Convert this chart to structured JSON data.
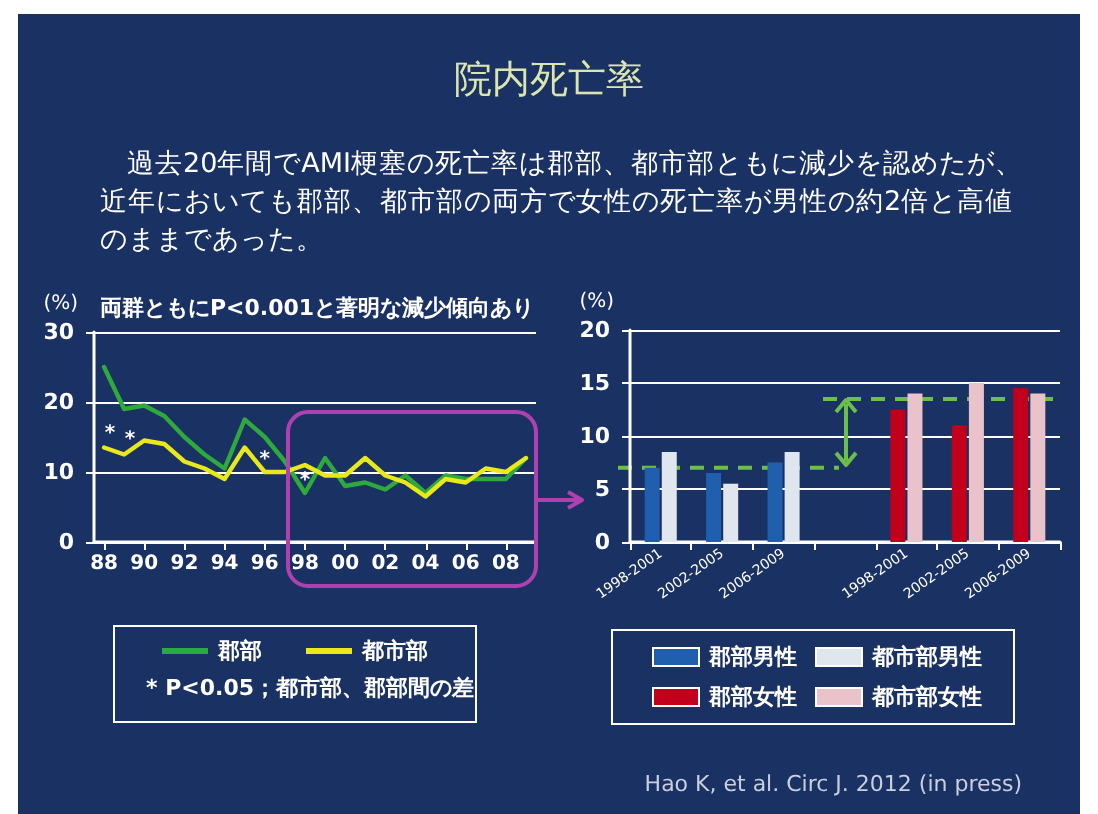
{
  "chart_data": [
    {
      "type": "line",
      "title": "院内死亡率",
      "subtitle": "過去20年間でAMI梗塞の死亡率は郡部、都市部ともに減少を認めたが、近年においても郡部、都市部の両方で女性の死亡率が男性の約2倍と高値のままであった。",
      "ylabel": "(%)",
      "x": [
        1988,
        1989,
        1990,
        1991,
        1992,
        1993,
        1994,
        1995,
        1996,
        1997,
        1998,
        1999,
        2000,
        2001,
        2002,
        2003,
        2004,
        2005,
        2006,
        2007,
        2008,
        2009
      ],
      "series": [
        {
          "name": "郡部",
          "color": "#2eaa3c",
          "values": [
            25,
            19,
            19.5,
            18,
            15,
            12.5,
            10.5,
            17.5,
            15,
            11.5,
            7,
            12,
            8,
            8.5,
            7.5,
            9.5,
            7,
            9.5,
            9,
            9,
            9,
            12
          ]
        },
        {
          "name": "都市部",
          "color": "#e8e81a",
          "values": [
            13.5,
            12.5,
            14.5,
            14,
            11.5,
            10.5,
            9,
            13.5,
            10,
            10,
            11,
            9.5,
            9.5,
            12,
            9.5,
            8.5,
            6.5,
            9,
            8.5,
            10.5,
            10,
            12
          ]
        }
      ],
      "xlim": [
        1987.5,
        2009.5
      ],
      "xticks": [
        {
          "value": 1988,
          "label": "88"
        },
        {
          "value": 1990,
          "label": "90"
        },
        {
          "value": 1992,
          "label": "92"
        },
        {
          "value": 1994,
          "label": "94"
        },
        {
          "value": 1996,
          "label": "96"
        },
        {
          "value": 1998,
          "label": "98"
        },
        {
          "value": 2000,
          "label": "00"
        },
        {
          "value": 2002,
          "label": "02"
        },
        {
          "value": 2004,
          "label": "04"
        },
        {
          "value": 2006,
          "label": "06"
        },
        {
          "value": 2008,
          "label": "08"
        }
      ],
      "ylim": [
        0,
        30
      ],
      "yticks": [
        0,
        10,
        20,
        30
      ],
      "grid": "y",
      "legend": "bottom",
      "marker": "none",
      "line_style": "solid",
      "annotations": [
        "両群ともにP<0.001と著明な減少傾向あり",
        "*",
        "*",
        {
          "text": "*",
          "x": 1996,
          "y": 12.5
        },
        {
          "text": "*",
          "x": 1998,
          "y": 9.5
        },
        "* P<0.05；都市部、郡部間の差"
      ]
    },
    {
      "type": "bar",
      "ylabel": "(%)",
      "categories": [
        "1998-2001",
        "2002-2005",
        "2006-2009",
        null,
        "1998-2001",
        "2002-2005",
        "2006-2009"
      ],
      "series": [
        {
          "name": "郡部男性",
          "color": "#1f5fae",
          "values": [
            7,
            6.5,
            7.5,
            null,
            null,
            null,
            null
          ]
        },
        {
          "name": "都市部男性",
          "color": "#dfe6ee",
          "values": [
            8.5,
            5.5,
            8.5,
            null,
            null,
            null,
            null
          ]
        },
        {
          "name": "郡部女性",
          "color": "#c3001c",
          "values": [
            null,
            null,
            null,
            null,
            12.5,
            11,
            14.5
          ]
        },
        {
          "name": "都市部女性",
          "color": "#e9c3c9",
          "values": [
            null,
            null,
            null,
            null,
            14,
            15,
            14
          ]
        }
      ],
      "ylim": [
        0,
        20
      ],
      "yticks": [
        0,
        5,
        10,
        15,
        20
      ],
      "grid": "y",
      "legend": "bottom",
      "ref_lines": [
        {
          "axis": "y",
          "value": 7,
          "color": "#6cc04a",
          "line_style": "dashed"
        },
        {
          "axis": "y",
          "value": 13.5,
          "color": "#6cc04a",
          "line_style": "dashed"
        }
      ],
      "annotations": [
        "Hao K, et al. Circ J. 2012 (in press)"
      ]
    }
  ]
}
